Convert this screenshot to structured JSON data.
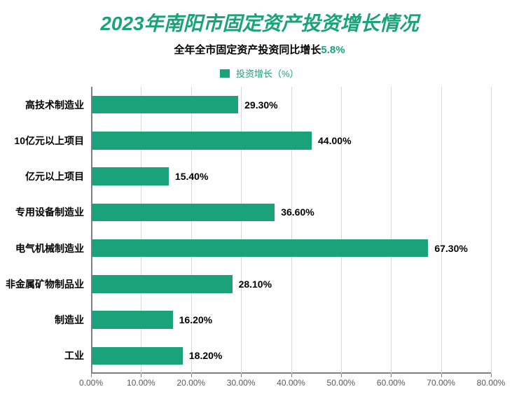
{
  "title": {
    "text": "2023年南阳市固定资产投资增长情况",
    "color": "#1aa37a",
    "fontsize": 28
  },
  "subtitle": {
    "prefix": "全年全市固定资产投资同比增长",
    "highlight": "5.8%",
    "prefix_color": "#000000",
    "highlight_color": "#1aa37a",
    "fontsize": 15
  },
  "legend": {
    "label": "投资增长（%）",
    "marker_color": "#1aa37a",
    "label_color": "#1aa37a",
    "fontsize": 13
  },
  "chart": {
    "type": "bar-horizontal",
    "xlim": [
      0,
      80
    ],
    "xtick_step": 10,
    "xtick_format": "0.00%",
    "xticks": [
      "0.00%",
      "10.00%",
      "20.00%",
      "30.00%",
      "40.00%",
      "50.00%",
      "60.00%",
      "70.00%",
      "80.00%"
    ],
    "grid_color": "#d9d9d9",
    "axis_color": "#808080",
    "tick_color": "#808080",
    "tick_fontsize": 12,
    "tick_text_color": "#595959",
    "bar_color": "#1aa37a",
    "bar_height_ratio": 0.5,
    "value_label_color": "#000000",
    "value_label_fontsize": 14,
    "cat_label_color": "#000000",
    "cat_label_fontsize": 14,
    "categories": [
      {
        "name": "高技术制造业",
        "value": 29.3,
        "label": "29.30%"
      },
      {
        "name": "10亿元以上项目",
        "value": 44.0,
        "label": "44.00%"
      },
      {
        "name": "亿元以上项目",
        "value": 15.4,
        "label": "15.40%"
      },
      {
        "name": "专用设备制造业",
        "value": 36.6,
        "label": "36.60%"
      },
      {
        "name": "电气机械制造业",
        "value": 67.3,
        "label": "67.30%"
      },
      {
        "name": "非金属矿物制品业",
        "value": 28.1,
        "label": "28.10%"
      },
      {
        "name": "制造业",
        "value": 16.2,
        "label": "16.20%"
      },
      {
        "name": "工业",
        "value": 18.2,
        "label": "18.20%"
      }
    ]
  }
}
